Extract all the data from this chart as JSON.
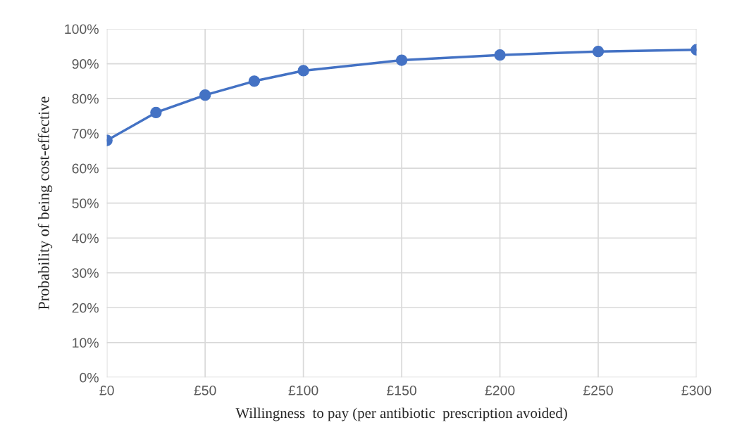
{
  "chart_data": {
    "type": "line",
    "xlabel": "Willingness  to pay (per antibiotic  prescription avoided)",
    "ylabel": "Probability of being cost-effective",
    "x": [
      0,
      25,
      50,
      75,
      100,
      150,
      200,
      250,
      300
    ],
    "series": [
      {
        "color": "#4472c4",
        "values": [
          68,
          76,
          81,
          85,
          88,
          91,
          92.5,
          93.5,
          94
        ]
      }
    ],
    "xlim": [
      0,
      300
    ],
    "xticks": [
      {
        "value": 0,
        "label": "£0"
      },
      {
        "value": 50,
        "label": "£50"
      },
      {
        "value": 100,
        "label": "£100"
      },
      {
        "value": 150,
        "label": "£150"
      },
      {
        "value": 200,
        "label": "£200"
      },
      {
        "value": 250,
        "label": "£250"
      },
      {
        "value": 300,
        "label": "£300"
      }
    ],
    "ylim": [
      0,
      100
    ],
    "yticks": [
      {
        "value": 0,
        "label": "0%"
      },
      {
        "value": 10,
        "label": "10%"
      },
      {
        "value": 20,
        "label": "20%"
      },
      {
        "value": 30,
        "label": "30%"
      },
      {
        "value": 40,
        "label": "40%"
      },
      {
        "value": 50,
        "label": "50%"
      },
      {
        "value": 60,
        "label": "60%"
      },
      {
        "value": 70,
        "label": "70%"
      },
      {
        "value": 80,
        "label": "80%"
      },
      {
        "value": 90,
        "label": "90%"
      },
      {
        "value": 100,
        "label": "100%"
      }
    ],
    "grid": true,
    "marker": "circle",
    "line_style": "solid"
  }
}
